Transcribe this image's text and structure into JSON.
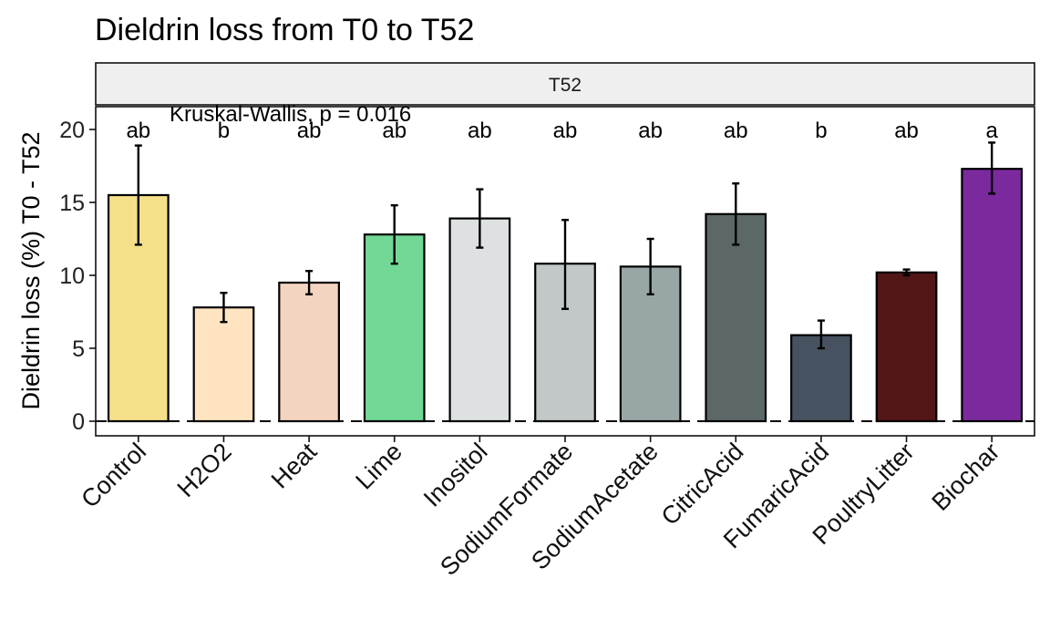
{
  "chart_data": {
    "type": "bar",
    "title": "Dieldrin loss from T0 to T52",
    "facet_label": "T52",
    "annotation": "Kruskal-Wallis, p = 0.016",
    "xlabel": "",
    "ylabel": "Dieldrin loss (%) T0 - T52",
    "ylim": [
      -1,
      21.5
    ],
    "yticks": [
      0,
      5,
      10,
      15,
      20
    ],
    "reference_line": 0,
    "grid": false,
    "categories": [
      "Control",
      "H2O2",
      "Heat",
      "Lime",
      "Inositol",
      "SodiumFormate",
      "SodiumAcetate",
      "CitricAcid",
      "FumaricAcid",
      "PoultryLitter",
      "Biochar"
    ],
    "values": [
      15.5,
      7.8,
      9.5,
      12.8,
      13.9,
      10.8,
      10.6,
      14.2,
      5.9,
      10.2,
      17.3
    ],
    "error_low": [
      12.1,
      6.8,
      8.7,
      10.8,
      11.9,
      7.7,
      8.7,
      12.1,
      5.0,
      10.0,
      15.6
    ],
    "error_high": [
      18.9,
      8.8,
      10.3,
      14.8,
      15.9,
      13.8,
      12.5,
      16.3,
      6.9,
      10.4,
      19.1
    ],
    "group_letters": [
      "ab",
      "b",
      "ab",
      "ab",
      "ab",
      "ab",
      "ab",
      "ab",
      "b",
      "ab",
      "a"
    ],
    "colors": [
      "#F5E08A",
      "#FFE4C2",
      "#F2D4C0",
      "#72D896",
      "#DDE1E2",
      "#C2C8C8",
      "#98A6A6",
      "#5B6867",
      "#465260",
      "#521616",
      "#7B2A9D"
    ]
  }
}
